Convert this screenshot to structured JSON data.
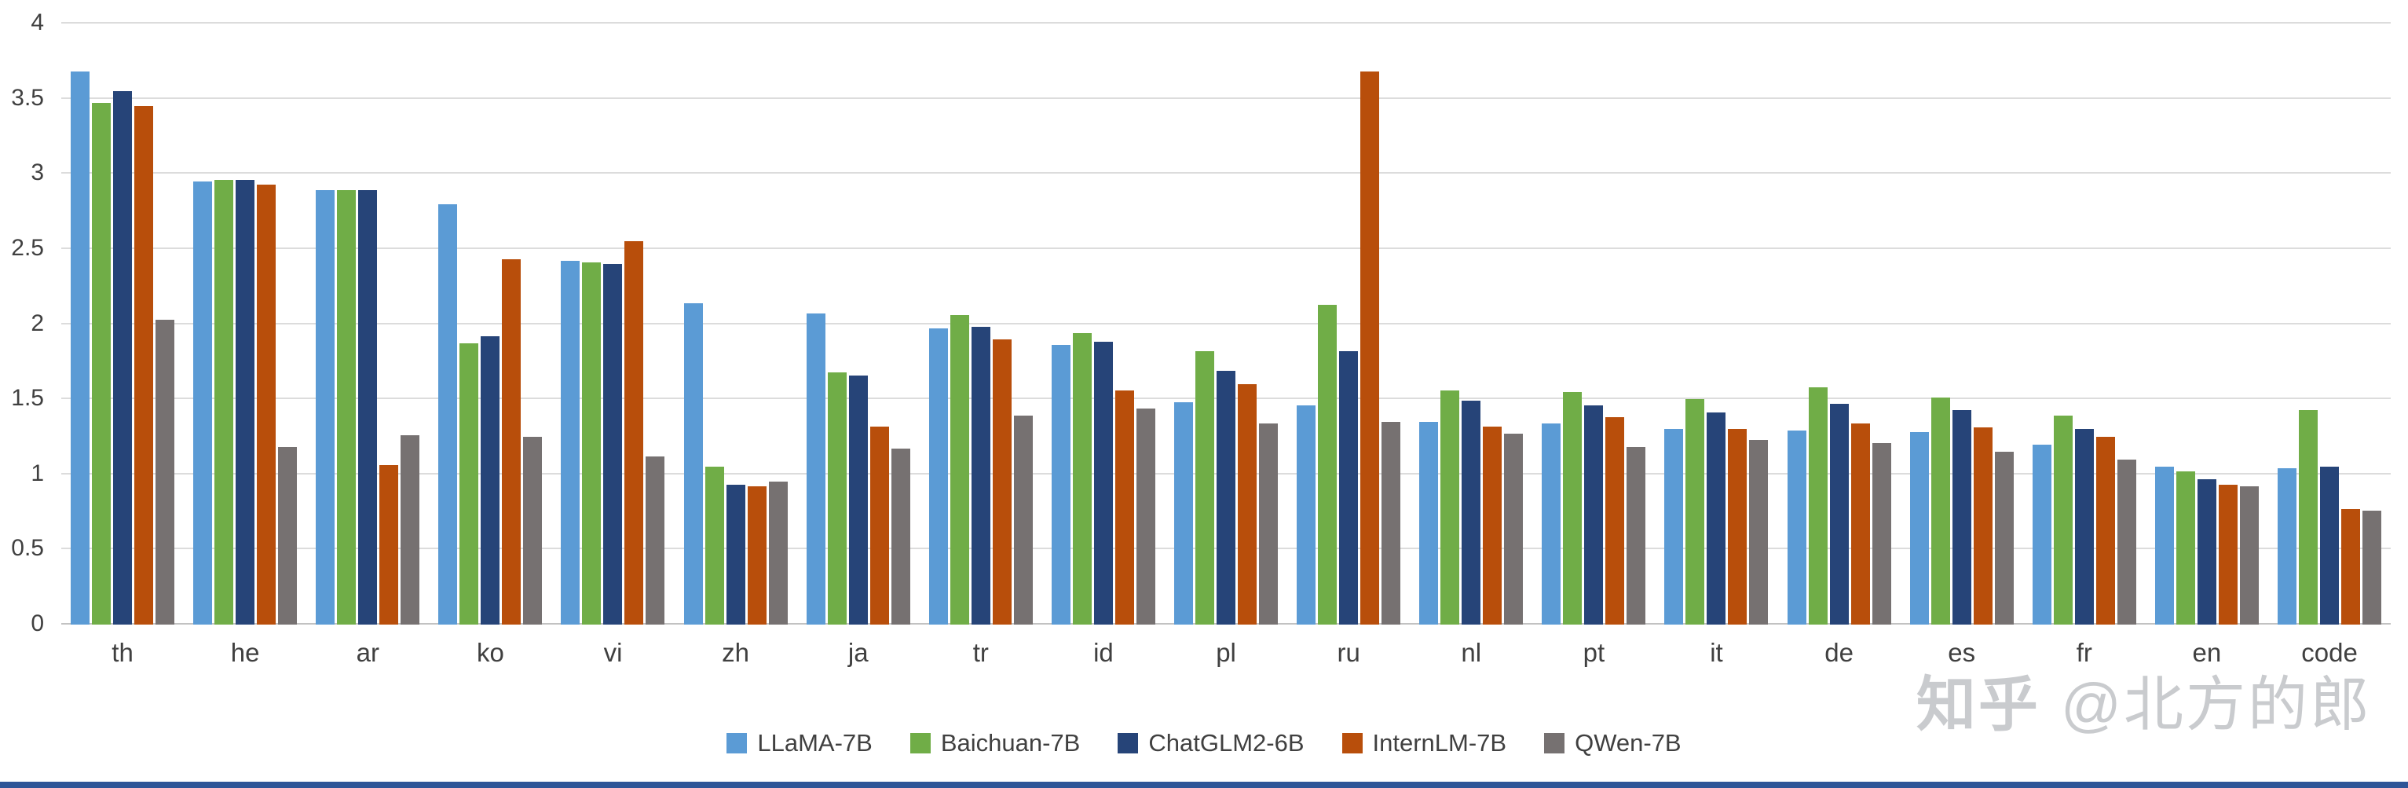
{
  "chart_data": {
    "type": "bar",
    "title": "",
    "xlabel": "",
    "ylabel": "",
    "ylim": [
      0,
      4
    ],
    "ytick_step": 0.5,
    "yticks": [
      "0",
      "0.5",
      "1",
      "1.5",
      "2",
      "2.5",
      "3",
      "3.5",
      "4"
    ],
    "grid": true,
    "legend_position": "bottom",
    "categories": [
      "th",
      "he",
      "ar",
      "ko",
      "vi",
      "zh",
      "ja",
      "tr",
      "id",
      "pl",
      "ru",
      "nl",
      "pt",
      "it",
      "de",
      "es",
      "fr",
      "en",
      "code"
    ],
    "series": [
      {
        "name": "LLaMA-7B",
        "color": "#5B9BD5",
        "values": [
          3.68,
          2.95,
          2.89,
          2.8,
          2.42,
          2.14,
          2.07,
          1.97,
          1.86,
          1.48,
          1.46,
          1.35,
          1.34,
          1.3,
          1.29,
          1.28,
          1.2,
          1.05,
          1.04
        ]
      },
      {
        "name": "Baichuan-7B",
        "color": "#70AD47",
        "values": [
          3.47,
          2.96,
          2.89,
          1.87,
          2.41,
          1.05,
          1.68,
          2.06,
          1.94,
          1.82,
          2.13,
          1.56,
          1.55,
          1.5,
          1.58,
          1.51,
          1.39,
          1.02,
          1.43
        ]
      },
      {
        "name": "ChatGLM2-6B",
        "color": "#264478",
        "values": [
          3.55,
          2.96,
          2.89,
          1.92,
          2.4,
          0.93,
          1.66,
          1.98,
          1.88,
          1.69,
          1.82,
          1.49,
          1.46,
          1.41,
          1.47,
          1.43,
          1.3,
          0.97,
          1.05
        ]
      },
      {
        "name": "InternLM-7B",
        "color": "#B84E0B",
        "values": [
          3.45,
          2.93,
          1.06,
          2.43,
          2.55,
          0.92,
          1.32,
          1.9,
          1.56,
          1.6,
          3.68,
          1.32,
          1.38,
          1.3,
          1.34,
          1.31,
          1.25,
          0.93,
          0.77
        ]
      },
      {
        "name": "QWen-7B",
        "color": "#767171",
        "values": [
          2.03,
          1.18,
          1.26,
          1.25,
          1.12,
          0.95,
          1.17,
          1.39,
          1.44,
          1.34,
          1.35,
          1.27,
          1.18,
          1.23,
          1.21,
          1.15,
          1.1,
          0.92,
          0.76
        ]
      }
    ]
  },
  "watermark": {
    "brand": "知乎",
    "user": "@北方的郎"
  },
  "colors": {
    "gridline": "#DCDCDC",
    "axis_line": "#C2C2C2",
    "tick_text": "#404040",
    "bottom_bar": "#2E5597",
    "watermark_text": "#C9CBCE"
  }
}
